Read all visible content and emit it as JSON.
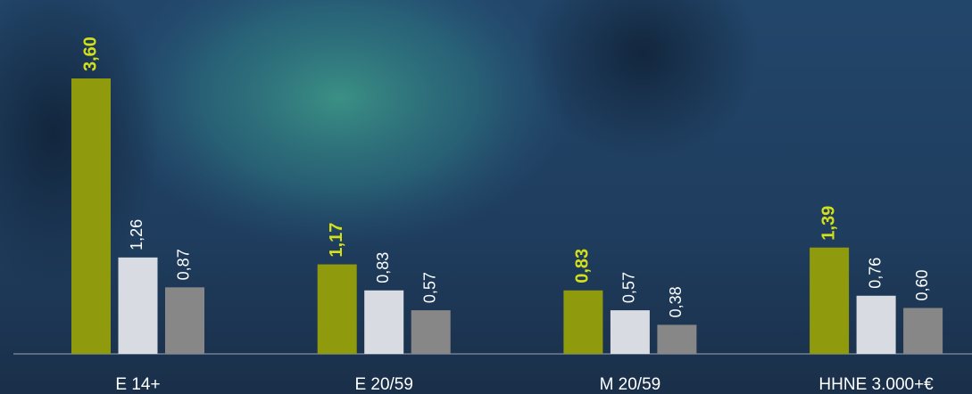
{
  "chart_data": {
    "type": "bar",
    "categories": [
      "E 14+",
      "E 20/59",
      "M 20/59",
      "HHNE 3.000+€"
    ],
    "series": [
      {
        "color": "#8f9a0c",
        "values": [
          3.6,
          1.17,
          0.83,
          1.39
        ],
        "value_labels": [
          "3,60",
          "1,17",
          "0,83",
          "1,39"
        ]
      },
      {
        "color": "#d8dce2",
        "values": [
          1.26,
          0.83,
          0.57,
          0.76
        ],
        "value_labels": [
          "1,26",
          "0,83",
          "0,57",
          "0,76"
        ]
      },
      {
        "color": "#878787",
        "values": [
          0.87,
          0.57,
          0.38,
          0.6
        ],
        "value_labels": [
          "0,87",
          "0,57",
          "0,38",
          "0,60"
        ]
      }
    ]
  }
}
